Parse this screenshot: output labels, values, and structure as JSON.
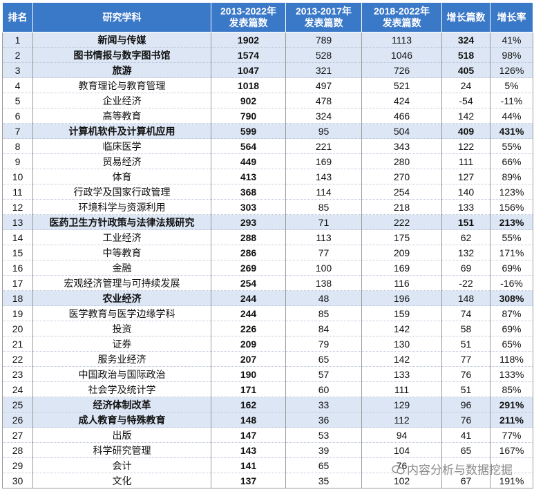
{
  "headers": [
    "排名",
    "研究学科",
    "2013-2022年\n发表篇数",
    "2013-2017年\n发表篇数",
    "2018-2022年\n发表篇数",
    "增长篇数",
    "增长率"
  ],
  "rows": [
    {
      "rank": "1",
      "subject": "新闻与传媒",
      "total": "1902",
      "p1": "789",
      "p2": "1113",
      "growth": "324",
      "rate": "41%",
      "subject_red": true,
      "growth_red": true,
      "rate_red": false
    },
    {
      "rank": "2",
      "subject": "图书情报与数字图书馆",
      "total": "1574",
      "p1": "528",
      "p2": "1046",
      "growth": "518",
      "rate": "98%",
      "subject_red": true,
      "growth_red": true,
      "rate_red": false
    },
    {
      "rank": "3",
      "subject": "旅游",
      "total": "1047",
      "p1": "321",
      "p2": "726",
      "growth": "405",
      "rate": "126%",
      "subject_red": true,
      "growth_red": true,
      "rate_red": false
    },
    {
      "rank": "4",
      "subject": "教育理论与教育管理",
      "total": "1018",
      "p1": "497",
      "p2": "521",
      "growth": "24",
      "rate": "5%",
      "subject_red": false,
      "growth_red": false,
      "rate_red": false
    },
    {
      "rank": "5",
      "subject": "企业经济",
      "total": "902",
      "p1": "478",
      "p2": "424",
      "growth": "-54",
      "rate": "-11%",
      "subject_red": false,
      "growth_red": false,
      "rate_red": false
    },
    {
      "rank": "6",
      "subject": "高等教育",
      "total": "790",
      "p1": "324",
      "p2": "466",
      "growth": "142",
      "rate": "44%",
      "subject_red": false,
      "growth_red": false,
      "rate_red": false
    },
    {
      "rank": "7",
      "subject": "计算机软件及计算机应用",
      "total": "599",
      "p1": "95",
      "p2": "504",
      "growth": "409",
      "rate": "431%",
      "subject_red": true,
      "growth_red": true,
      "rate_red": true
    },
    {
      "rank": "8",
      "subject": "临床医学",
      "total": "564",
      "p1": "221",
      "p2": "343",
      "growth": "122",
      "rate": "55%",
      "subject_red": false,
      "growth_red": false,
      "rate_red": false
    },
    {
      "rank": "9",
      "subject": "贸易经济",
      "total": "449",
      "p1": "169",
      "p2": "280",
      "growth": "111",
      "rate": "66%",
      "subject_red": false,
      "growth_red": false,
      "rate_red": false
    },
    {
      "rank": "10",
      "subject": "体育",
      "total": "413",
      "p1": "143",
      "p2": "270",
      "growth": "127",
      "rate": "89%",
      "subject_red": false,
      "growth_red": false,
      "rate_red": false
    },
    {
      "rank": "11",
      "subject": "行政学及国家行政管理",
      "total": "368",
      "p1": "114",
      "p2": "254",
      "growth": "140",
      "rate": "123%",
      "subject_red": false,
      "growth_red": false,
      "rate_red": false
    },
    {
      "rank": "12",
      "subject": "环境科学与资源利用",
      "total": "303",
      "p1": "85",
      "p2": "218",
      "growth": "133",
      "rate": "156%",
      "subject_red": false,
      "growth_red": false,
      "rate_red": false
    },
    {
      "rank": "13",
      "subject": "医药卫生方针政策与法律法规研究",
      "total": "293",
      "p1": "71",
      "p2": "222",
      "growth": "151",
      "rate": "213%",
      "subject_red": true,
      "growth_red": true,
      "rate_red": true
    },
    {
      "rank": "14",
      "subject": "工业经济",
      "total": "288",
      "p1": "113",
      "p2": "175",
      "growth": "62",
      "rate": "55%",
      "subject_red": false,
      "growth_red": false,
      "rate_red": false
    },
    {
      "rank": "15",
      "subject": "中等教育",
      "total": "286",
      "p1": "77",
      "p2": "209",
      "growth": "132",
      "rate": "171%",
      "subject_red": false,
      "growth_red": false,
      "rate_red": false
    },
    {
      "rank": "16",
      "subject": "金融",
      "total": "269",
      "p1": "100",
      "p2": "169",
      "growth": "69",
      "rate": "69%",
      "subject_red": false,
      "growth_red": false,
      "rate_red": false
    },
    {
      "rank": "17",
      "subject": "宏观经济管理与可持续发展",
      "total": "254",
      "p1": "138",
      "p2": "116",
      "growth": "-22",
      "rate": "-16%",
      "subject_red": false,
      "growth_red": false,
      "rate_red": false
    },
    {
      "rank": "18",
      "subject": "农业经济",
      "total": "244",
      "p1": "48",
      "p2": "196",
      "growth": "148",
      "rate": "308%",
      "subject_red": true,
      "growth_red": false,
      "rate_red": true
    },
    {
      "rank": "19",
      "subject": "医学教育与医学边缘学科",
      "total": "244",
      "p1": "85",
      "p2": "159",
      "growth": "74",
      "rate": "87%",
      "subject_red": false,
      "growth_red": false,
      "rate_red": false
    },
    {
      "rank": "20",
      "subject": "投资",
      "total": "226",
      "p1": "84",
      "p2": "142",
      "growth": "58",
      "rate": "69%",
      "subject_red": false,
      "growth_red": false,
      "rate_red": false
    },
    {
      "rank": "21",
      "subject": "证券",
      "total": "209",
      "p1": "79",
      "p2": "130",
      "growth": "51",
      "rate": "65%",
      "subject_red": false,
      "growth_red": false,
      "rate_red": false
    },
    {
      "rank": "22",
      "subject": "服务业经济",
      "total": "207",
      "p1": "65",
      "p2": "142",
      "growth": "77",
      "rate": "118%",
      "subject_red": false,
      "growth_red": false,
      "rate_red": false
    },
    {
      "rank": "23",
      "subject": "中国政治与国际政治",
      "total": "190",
      "p1": "57",
      "p2": "133",
      "growth": "76",
      "rate": "133%",
      "subject_red": false,
      "growth_red": false,
      "rate_red": false
    },
    {
      "rank": "24",
      "subject": "社会学及统计学",
      "total": "171",
      "p1": "60",
      "p2": "111",
      "growth": "51",
      "rate": "85%",
      "subject_red": false,
      "growth_red": false,
      "rate_red": false
    },
    {
      "rank": "25",
      "subject": "经济体制改革",
      "total": "162",
      "p1": "33",
      "p2": "129",
      "growth": "96",
      "rate": "291%",
      "subject_red": true,
      "growth_red": false,
      "rate_red": true
    },
    {
      "rank": "26",
      "subject": "成人教育与特殊教育",
      "total": "148",
      "p1": "36",
      "p2": "112",
      "growth": "76",
      "rate": "211%",
      "subject_red": true,
      "growth_red": false,
      "rate_red": true
    },
    {
      "rank": "27",
      "subject": "出版",
      "total": "147",
      "p1": "53",
      "p2": "94",
      "growth": "41",
      "rate": "77%",
      "subject_red": false,
      "growth_red": false,
      "rate_red": false
    },
    {
      "rank": "28",
      "subject": "科学研究管理",
      "total": "143",
      "p1": "39",
      "p2": "104",
      "growth": "65",
      "rate": "167%",
      "subject_red": false,
      "growth_red": false,
      "rate_red": false
    },
    {
      "rank": "29",
      "subject": "会计",
      "total": "141",
      "p1": "65",
      "p2": "76",
      "growth": "",
      "rate": "",
      "subject_red": false,
      "growth_red": false,
      "rate_red": false
    },
    {
      "rank": "30",
      "subject": "文化",
      "total": "137",
      "p1": "35",
      "p2": "102",
      "growth": "67",
      "rate": "191%",
      "subject_red": false,
      "growth_red": false,
      "rate_red": false
    }
  ],
  "watermark": "内容分析与数据挖掘",
  "colors": {
    "header_bg": "#3a78c8",
    "highlight_row": "#dce6f4",
    "highlight_text": "#c00000"
  },
  "icons": {
    "watermark": "wechat-icon"
  }
}
